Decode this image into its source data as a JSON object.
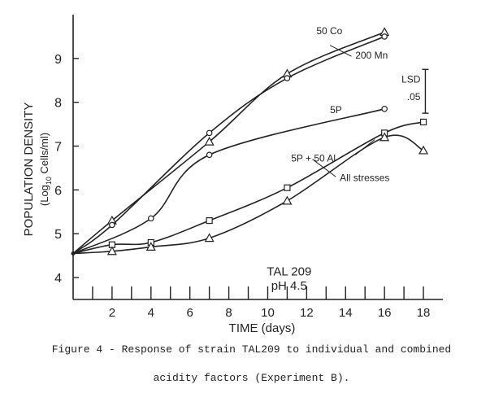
{
  "chart_data": {
    "type": "line",
    "xlabel": "TIME (days)",
    "ylabel_line1": "POPULATION DENSITY",
    "ylabel_line2": "(Log",
    "ylabel_sub": "10",
    "ylabel_line3": " Cells/ml)",
    "xlim": [
      0,
      19
    ],
    "ylim": [
      3.5,
      10
    ],
    "xticks": [
      2,
      4,
      6,
      8,
      10,
      12,
      14,
      16,
      18
    ],
    "yticks": [
      4,
      5,
      6,
      7,
      8,
      9
    ],
    "annotation_line1": "TAL 209",
    "annotation_line2": "pH 4.5",
    "lsd_label": "LSD",
    "lsd_value_label": ".05",
    "lsd_range": [
      7.75,
      8.75
    ],
    "series": [
      {
        "name": "50 Co",
        "marker": "triangle",
        "x": [
          0,
          2,
          7,
          11,
          16
        ],
        "y": [
          4.55,
          5.3,
          7.1,
          8.65,
          9.6
        ]
      },
      {
        "name": "200 Mn",
        "marker": "circle",
        "x": [
          0,
          2,
          7,
          11,
          16
        ],
        "y": [
          4.55,
          5.2,
          7.3,
          8.55,
          9.5
        ]
      },
      {
        "name": "5P",
        "marker": "circle",
        "x": [
          0,
          4,
          7,
          16
        ],
        "y": [
          4.55,
          5.35,
          6.8,
          7.85
        ]
      },
      {
        "name": "5P + 50 Al",
        "marker": "square",
        "x": [
          0,
          2,
          4,
          7,
          11,
          16,
          18
        ],
        "y": [
          4.55,
          4.75,
          4.8,
          5.3,
          6.05,
          7.3,
          7.55
        ]
      },
      {
        "name": "All stresses",
        "marker": "triangle",
        "x": [
          0,
          2,
          4,
          7,
          11,
          16,
          18
        ],
        "y": [
          4.55,
          4.6,
          4.7,
          4.9,
          5.75,
          7.2,
          6.9
        ]
      }
    ]
  },
  "caption": {
    "line1": "Figure 4 - Response of strain TAL209 to individual and combined",
    "line2": "acidity factors (Experiment B)."
  }
}
